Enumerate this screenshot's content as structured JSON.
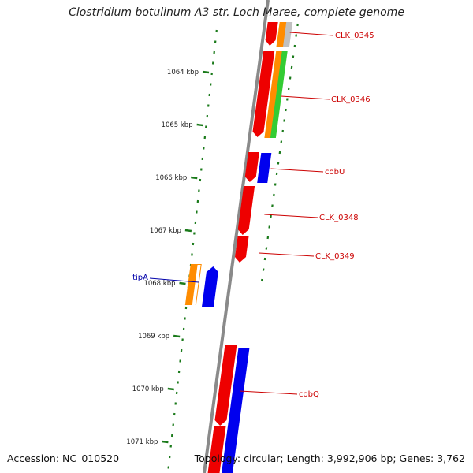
{
  "title": "Clostridium botulinum A3 str. Loch Maree, complete genome",
  "footer": {
    "accession": "Accession: NC_010520",
    "summary": "Topology: circular; Length: 3,992,906 bp; Genes: 3,762"
  },
  "colors": {
    "backbone": "#8a8a8a",
    "tick": "#1a7a1a",
    "forward_label": "#cc0000",
    "reverse_label": "#0000aa",
    "red": "#ee0000",
    "orange": "#ff8c00",
    "green": "#33cc33",
    "blue": "#0000ee",
    "gray": "#c0c0c0"
  },
  "ruler": {
    "unit": "kbp",
    "ticks": [
      {
        "kbp": 1064,
        "label": "1064 kbp"
      },
      {
        "kbp": 1065,
        "label": "1065 kbp"
      },
      {
        "kbp": 1066,
        "label": "1066 kbp"
      },
      {
        "kbp": 1067,
        "label": "1067 kbp"
      },
      {
        "kbp": 1068,
        "label": "1068 kbp"
      },
      {
        "kbp": 1069,
        "label": "1069 kbp"
      },
      {
        "kbp": 1070,
        "label": "1070 kbp"
      },
      {
        "kbp": 1071,
        "label": "1071 kbp"
      }
    ]
  },
  "gene_labels": [
    {
      "name": "CLK_0345",
      "strand": "forward"
    },
    {
      "name": "CLK_0346",
      "strand": "forward"
    },
    {
      "name": "cobU",
      "strand": "forward"
    },
    {
      "name": "CLK_0348",
      "strand": "forward"
    },
    {
      "name": "CLK_0349",
      "strand": "forward"
    },
    {
      "name": "cobQ",
      "strand": "forward"
    },
    {
      "name": "tipA",
      "strand": "reverse"
    }
  ]
}
